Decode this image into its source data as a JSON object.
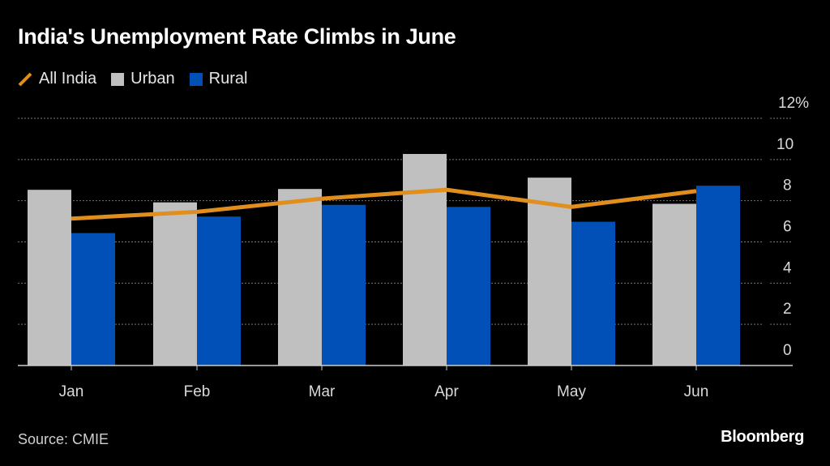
{
  "chart_data": {
    "type": "bar",
    "title": "India's Unemployment Rate Climbs in June",
    "categories": [
      "Jan",
      "Feb",
      "Mar",
      "Apr",
      "May",
      "Jun"
    ],
    "series": [
      {
        "name": "Urban",
        "kind": "bar",
        "color": "#c0c0c0",
        "values": [
          8.53,
          7.92,
          8.57,
          10.27,
          9.12,
          7.85
        ]
      },
      {
        "name": "Rural",
        "kind": "bar",
        "color": "#0050b8",
        "values": [
          6.43,
          7.23,
          7.8,
          7.7,
          6.98,
          8.73
        ]
      },
      {
        "name": "All India",
        "kind": "line",
        "color": "#e08f1f",
        "values": [
          7.13,
          7.46,
          8.1,
          8.53,
          7.7,
          8.47
        ]
      }
    ],
    "legend_order": [
      "All India",
      "Urban",
      "Rural"
    ],
    "ylim": [
      0,
      12
    ],
    "yticks": [
      "0",
      "2",
      "4",
      "6",
      "8",
      "10",
      "12%"
    ],
    "ytick_values": [
      0,
      2,
      4,
      6,
      8,
      10,
      12
    ],
    "y_axis_position": "right",
    "grid": true,
    "legend_placement": "top-left",
    "source": "Source: CMIE",
    "brand": "Bloomberg"
  }
}
